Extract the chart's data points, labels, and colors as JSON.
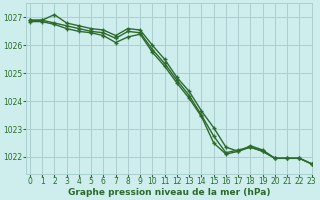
{
  "xlabel": "Graphe pression niveau de la mer (hPa)",
  "background_color": "#ceeeed",
  "plot_bg_color": "#ceeeed",
  "grid_color": "#aacfcf",
  "line_color": "#2d6a2d",
  "x_ticks": [
    0,
    1,
    2,
    3,
    4,
    5,
    6,
    7,
    8,
    9,
    10,
    11,
    12,
    13,
    14,
    15,
    16,
    17,
    18,
    19,
    20,
    21,
    22,
    23
  ],
  "ylim": [
    1021.4,
    1027.5
  ],
  "xlim": [
    -0.3,
    23
  ],
  "yticks": [
    1022,
    1023,
    1024,
    1025,
    1026,
    1027
  ],
  "line1": [
    1026.9,
    1026.9,
    1027.1,
    1026.8,
    1026.7,
    1026.6,
    1026.55,
    1026.35,
    1026.6,
    1026.55,
    1026.0,
    1025.5,
    1024.85,
    1024.35,
    1023.65,
    1023.05,
    1022.35,
    1022.2,
    1022.35,
    1022.2,
    1021.95,
    1021.95,
    1021.95,
    1021.75
  ],
  "line2": [
    1026.9,
    1026.9,
    1026.8,
    1026.7,
    1026.6,
    1026.5,
    1026.45,
    1026.25,
    1026.5,
    1026.45,
    1025.85,
    1025.35,
    1024.75,
    1024.2,
    1023.5,
    1022.75,
    1022.15,
    1022.25,
    1022.35,
    1022.2,
    1021.95,
    1021.95,
    1021.95,
    1021.75
  ],
  "line3": [
    1026.85,
    1026.85,
    1026.75,
    1026.6,
    1026.5,
    1026.45,
    1026.35,
    1026.1,
    1026.3,
    1026.4,
    1025.75,
    1025.25,
    1024.65,
    1024.1,
    1023.45,
    1022.5,
    1022.1,
    1022.2,
    1022.4,
    1022.25,
    1021.95,
    1021.95,
    1021.95,
    1021.75
  ],
  "xlabel_fontsize": 6.5,
  "tick_fontsize": 5.5
}
